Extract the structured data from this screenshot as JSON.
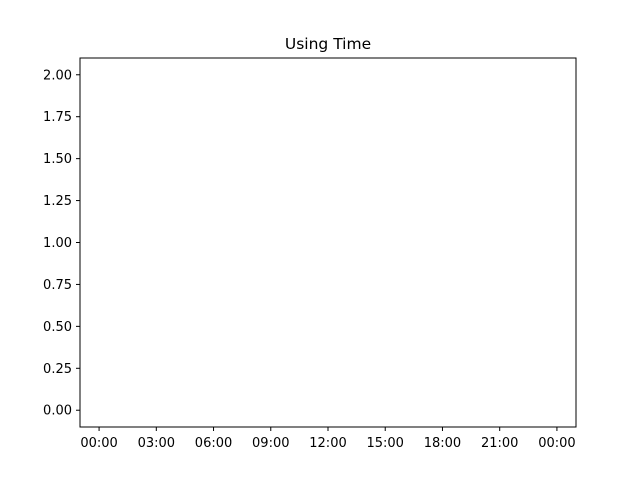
{
  "chart_data": {
    "type": "line",
    "title": "Using Time",
    "xlabel": "",
    "ylabel": "",
    "series": [],
    "x_tick_labels": [
      "00:00",
      "03:00",
      "06:00",
      "09:00",
      "12:00",
      "15:00",
      "18:00",
      "21:00",
      "00:00"
    ],
    "y_ticks": [
      0.0,
      0.25,
      0.5,
      0.75,
      1.0,
      1.25,
      1.5,
      1.75,
      2.0
    ],
    "y_tick_labels": [
      "0.00",
      "0.25",
      "0.50",
      "0.75",
      "1.00",
      "1.25",
      "1.50",
      "1.75",
      "2.00"
    ],
    "ylim": [
      -0.1,
      2.1
    ],
    "xlim_hours": [
      -1,
      25
    ],
    "grid": false,
    "legend": "none"
  }
}
